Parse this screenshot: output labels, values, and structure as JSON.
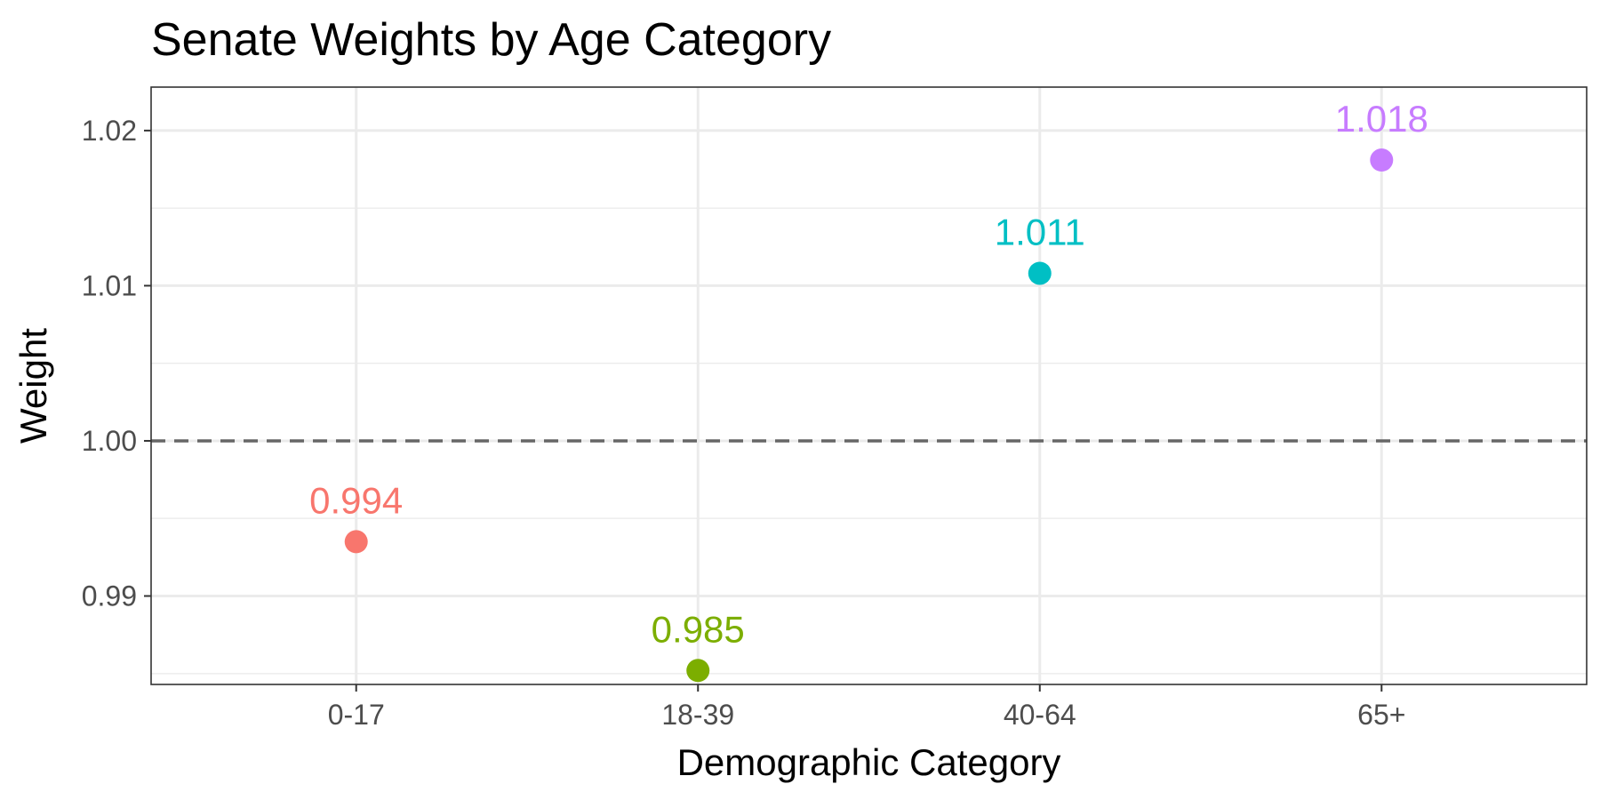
{
  "chart_data": {
    "type": "scatter",
    "title": "Senate Weights by Age Category",
    "xlabel": "Demographic Category",
    "ylabel": "Weight",
    "categories": [
      "0-17",
      "18-39",
      "40-64",
      "65+"
    ],
    "values": [
      0.9935,
      0.9852,
      1.0108,
      1.0181
    ],
    "data_labels": [
      "0.994",
      "0.985",
      "1.011",
      "1.018"
    ],
    "point_colors": [
      "#F8766D",
      "#7CAE00",
      "#00BFC4",
      "#C77CFF"
    ],
    "ylim": [
      0.9843,
      1.0228
    ],
    "y_ticks": [
      0.99,
      1.0,
      1.01,
      1.02
    ],
    "y_tick_labels": [
      "0.99",
      "1.00",
      "1.01",
      "1.02"
    ],
    "y_minor_ticks": [
      0.985,
      0.995,
      1.005,
      1.015
    ],
    "reference_line": {
      "y": 1.0,
      "style": "dashed",
      "color": "#666666"
    },
    "grid": true,
    "legend": "none",
    "theme": "bw"
  }
}
